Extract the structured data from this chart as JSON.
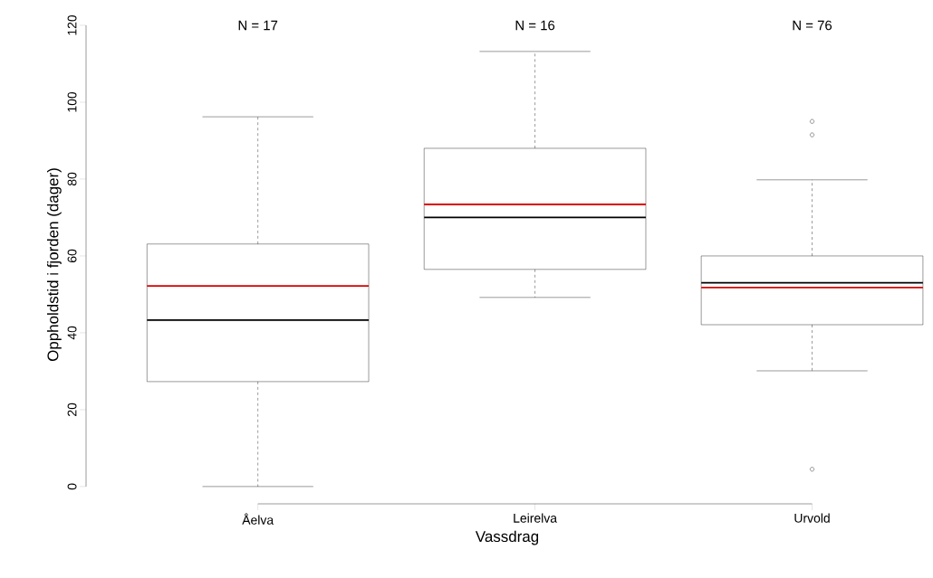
{
  "chart_data": {
    "type": "box",
    "xlabel": "Vassdrag",
    "ylabel": "Oppholdstid i fjorden (dager)",
    "categories": [
      "Åelva",
      "Leirelva",
      "Urvold"
    ],
    "boxes": [
      {
        "low": 0,
        "q1": 27.3,
        "median": 43.3,
        "q3": 63.1,
        "high": 96.2,
        "mean": 52.2
      },
      {
        "low": 49.2,
        "q1": 56.5,
        "median": 70,
        "q3": 88,
        "high": 113.2,
        "mean": 73.4
      },
      {
        "low": 30.1,
        "q1": 42.1,
        "median": 53,
        "q3": 60,
        "high": 79.8,
        "mean": 51.8,
        "outliers": [
          95,
          91.5,
          4.5
        ]
      }
    ],
    "ylim": [
      -4.5,
      120
    ],
    "yticks": [
      0,
      20,
      40,
      60,
      80,
      100,
      120
    ],
    "grid": false,
    "marker": "circle",
    "annotations": [
      "N = 17",
      "N = 16",
      "N = 76"
    ]
  }
}
